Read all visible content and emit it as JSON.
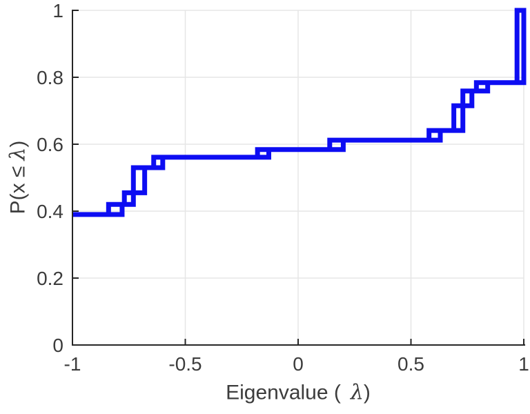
{
  "chart_data": {
    "type": "step",
    "title": "",
    "xlabel_pre": "Eigenvalue (",
    "xlabel_lambda": "λ",
    "xlabel_post": ")",
    "ylabel_pre": "P(x ≤",
    "ylabel_lambda": "λ",
    "ylabel_post": ")",
    "xlim": [
      -1,
      1
    ],
    "ylim": [
      0,
      1
    ],
    "xticks": [
      -1,
      -0.5,
      0,
      0.5,
      1
    ],
    "xtick_labels": [
      "-1",
      "-0.5",
      "0",
      "0.5",
      "1"
    ],
    "yticks": [
      0,
      0.2,
      0.4,
      0.6,
      0.8,
      1
    ],
    "ytick_labels": [
      "0",
      "0.2",
      "0.4",
      "0.6",
      "0.8",
      "1"
    ],
    "grid": true,
    "legend_position": "none",
    "line_color": "#0d0df2",
    "grid_color": "#e6e6e6",
    "axis_color": "#262626",
    "tick_label_color": "#3c3c3c",
    "ecdf_start": {
      "x": -1,
      "p": 0.39
    },
    "ecdf_end_x": 1.0,
    "jumps": [
      {
        "x_left": -0.84,
        "x_right": -0.78,
        "p_from": 0.39,
        "p_to": 0.42
      },
      {
        "x_left": -0.77,
        "x_right": -0.73,
        "p_from": 0.42,
        "p_to": 0.455
      },
      {
        "x_left": -0.73,
        "x_right": -0.68,
        "p_from": 0.455,
        "p_to": 0.53
      },
      {
        "x_left": -0.64,
        "x_right": -0.6,
        "p_from": 0.53,
        "p_to": 0.561
      },
      {
        "x_left": -0.18,
        "x_right": -0.13,
        "p_from": 0.561,
        "p_to": 0.584
      },
      {
        "x_left": 0.14,
        "x_right": 0.2,
        "p_from": 0.584,
        "p_to": 0.612
      },
      {
        "x_left": 0.58,
        "x_right": 0.63,
        "p_from": 0.612,
        "p_to": 0.641
      },
      {
        "x_left": 0.69,
        "x_right": 0.73,
        "p_from": 0.641,
        "p_to": 0.715
      },
      {
        "x_left": 0.73,
        "x_right": 0.77,
        "p_from": 0.715,
        "p_to": 0.759
      },
      {
        "x_left": 0.79,
        "x_right": 0.84,
        "p_from": 0.759,
        "p_to": 0.784
      },
      {
        "x_left": 0.97,
        "x_right": 1.0,
        "p_from": 0.784,
        "p_to": 1.0
      }
    ]
  }
}
